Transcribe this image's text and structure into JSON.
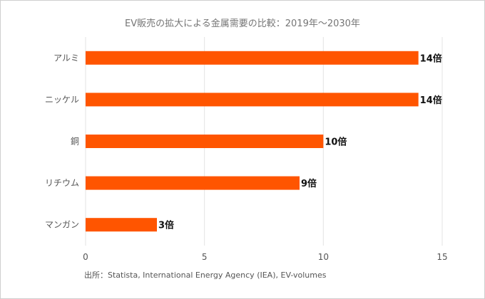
{
  "chart_data": {
    "type": "bar",
    "orientation": "horizontal",
    "title": "EV販売の拡大による金属需要の比較：2019年〜2030年",
    "categories": [
      "アルミ",
      "ニッケル",
      "銅",
      "リチウム",
      "マンガン"
    ],
    "values": [
      14,
      14,
      10,
      9,
      3
    ],
    "value_labels": [
      "14倍",
      "14倍",
      "10倍",
      "9倍",
      "3倍"
    ],
    "xlim": [
      0,
      15
    ],
    "xticks": [
      0,
      5,
      10,
      15
    ],
    "grid": "vertical",
    "legend": "none",
    "bar_color": "#ff5500",
    "source": "出所：Statista, International Energy Agency (IEA), EV-volumes"
  }
}
